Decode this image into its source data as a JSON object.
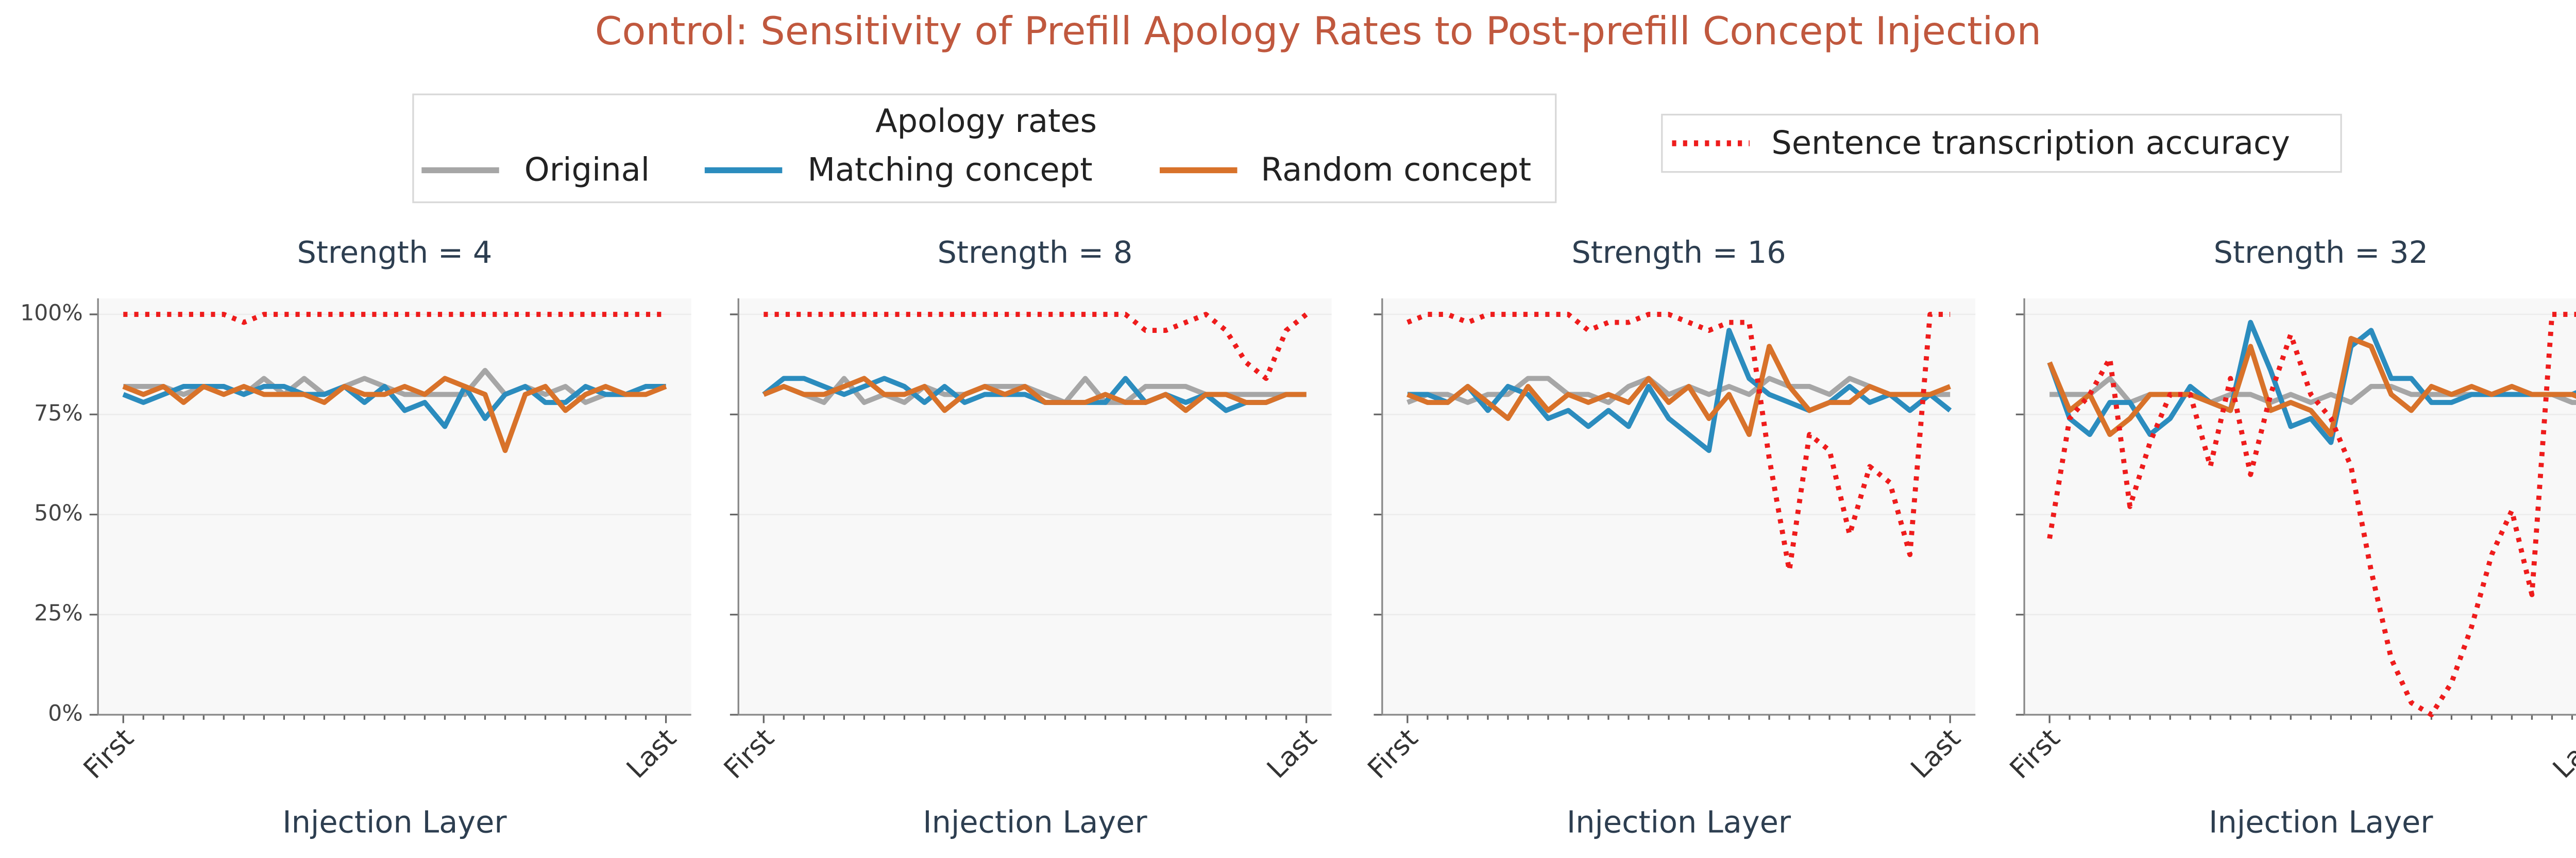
{
  "title": "Control: Sensitivity of Prefill Apology Rates to Post-prefill Concept Injection",
  "legend_title": "Apology rates",
  "chart_data": [
    {
      "type": "line",
      "title": "Strength = 4",
      "x_label": "Injection Layer",
      "categories": [
        "First",
        null,
        null,
        null,
        null,
        null,
        null,
        null,
        null,
        null,
        null,
        null,
        null,
        null,
        null,
        null,
        null,
        null,
        null,
        null,
        null,
        null,
        null,
        null,
        null,
        null,
        null,
        "Last"
      ],
      "ylim": [
        0,
        104
      ],
      "yticks": [
        {
          "value": 0,
          "label": "0%"
        },
        {
          "value": 25,
          "label": "25%"
        },
        {
          "value": 50,
          "label": "50%"
        },
        {
          "value": 75,
          "label": "75%"
        },
        {
          "value": 100,
          "label": "100%"
        }
      ],
      "grid": true,
      "series": [
        {
          "name": "Original",
          "color": "#a6a6a6",
          "dash": "solid",
          "values": [
            82,
            82,
            82,
            80,
            82,
            82,
            80,
            84,
            80,
            84,
            80,
            82,
            84,
            82,
            80,
            80,
            80,
            80,
            86,
            80,
            82,
            80,
            82,
            78,
            80,
            80,
            82,
            82
          ]
        },
        {
          "name": "Matching concept",
          "color": "#2b8cbe",
          "dash": "solid",
          "values": [
            80,
            78,
            80,
            82,
            82,
            82,
            80,
            82,
            82,
            80,
            80,
            82,
            78,
            82,
            76,
            78,
            72,
            82,
            74,
            80,
            82,
            78,
            78,
            82,
            80,
            80,
            82,
            82
          ]
        },
        {
          "name": "Random concept",
          "color": "#d8722a",
          "dash": "solid",
          "values": [
            82,
            80,
            82,
            78,
            82,
            80,
            82,
            80,
            80,
            80,
            78,
            82,
            80,
            80,
            82,
            80,
            84,
            82,
            80,
            66,
            80,
            82,
            76,
            80,
            82,
            80,
            80,
            82
          ]
        },
        {
          "name": "Sentence transcription accuracy",
          "color": "#ee1c1c",
          "dash": "dotted",
          "values": [
            100,
            100,
            100,
            100,
            100,
            100,
            98,
            100,
            100,
            100,
            100,
            100,
            100,
            100,
            100,
            100,
            100,
            100,
            100,
            100,
            100,
            100,
            100,
            100,
            100,
            100,
            100,
            100
          ]
        }
      ]
    },
    {
      "type": "line",
      "title": "Strength = 8",
      "x_label": "Injection Layer",
      "categories": [
        "First",
        null,
        null,
        null,
        null,
        null,
        null,
        null,
        null,
        null,
        null,
        null,
        null,
        null,
        null,
        null,
        null,
        null,
        null,
        null,
        null,
        null,
        null,
        null,
        null,
        null,
        null,
        "Last"
      ],
      "ylim": [
        0,
        104
      ],
      "yticks": [
        0,
        25,
        50,
        75,
        100
      ],
      "grid": true,
      "series": [
        {
          "name": "Original",
          "color": "#a6a6a6",
          "dash": "solid",
          "values": [
            80,
            82,
            80,
            78,
            84,
            78,
            80,
            78,
            82,
            80,
            80,
            82,
            82,
            82,
            80,
            78,
            84,
            78,
            78,
            82,
            82,
            82,
            80,
            80,
            80,
            80,
            80,
            80
          ]
        },
        {
          "name": "Matching concept",
          "color": "#2b8cbe",
          "dash": "solid",
          "values": [
            80,
            84,
            84,
            82,
            80,
            82,
            84,
            82,
            78,
            82,
            78,
            80,
            80,
            80,
            78,
            78,
            78,
            78,
            84,
            78,
            80,
            78,
            80,
            76,
            78,
            78,
            80,
            80
          ]
        },
        {
          "name": "Random concept",
          "color": "#d8722a",
          "dash": "solid",
          "values": [
            80,
            82,
            80,
            80,
            82,
            84,
            80,
            80,
            82,
            76,
            80,
            82,
            80,
            82,
            78,
            78,
            78,
            80,
            78,
            78,
            80,
            76,
            80,
            80,
            78,
            78,
            80,
            80
          ]
        },
        {
          "name": "Sentence transcription accuracy",
          "color": "#ee1c1c",
          "dash": "dotted",
          "values": [
            100,
            100,
            100,
            100,
            100,
            100,
            100,
            100,
            100,
            100,
            100,
            100,
            100,
            100,
            100,
            100,
            100,
            100,
            100,
            96,
            96,
            98,
            100,
            96,
            88,
            84,
            96,
            100
          ]
        }
      ]
    },
    {
      "type": "line",
      "title": "Strength = 16",
      "x_label": "Injection Layer",
      "categories": [
        "First",
        null,
        null,
        null,
        null,
        null,
        null,
        null,
        null,
        null,
        null,
        null,
        null,
        null,
        null,
        null,
        null,
        null,
        null,
        null,
        null,
        null,
        null,
        null,
        null,
        null,
        null,
        "Last"
      ],
      "ylim": [
        0,
        104
      ],
      "yticks": [
        0,
        25,
        50,
        75,
        100
      ],
      "grid": true,
      "series": [
        {
          "name": "Original",
          "color": "#a6a6a6",
          "dash": "solid",
          "values": [
            78,
            80,
            80,
            78,
            80,
            80,
            84,
            84,
            80,
            80,
            78,
            82,
            84,
            80,
            82,
            80,
            82,
            80,
            84,
            82,
            82,
            80,
            84,
            82,
            80,
            80,
            80,
            80
          ]
        },
        {
          "name": "Matching concept",
          "color": "#2b8cbe",
          "dash": "solid",
          "values": [
            80,
            80,
            78,
            82,
            76,
            82,
            80,
            74,
            76,
            72,
            76,
            72,
            82,
            74,
            70,
            66,
            96,
            84,
            80,
            78,
            76,
            78,
            82,
            78,
            80,
            76,
            80,
            76
          ]
        },
        {
          "name": "Random concept",
          "color": "#d8722a",
          "dash": "solid",
          "values": [
            80,
            78,
            78,
            82,
            78,
            74,
            82,
            76,
            80,
            78,
            80,
            78,
            84,
            78,
            82,
            74,
            80,
            70,
            92,
            82,
            76,
            78,
            78,
            82,
            80,
            80,
            80,
            82
          ]
        },
        {
          "name": "Sentence transcription accuracy",
          "color": "#ee1c1c",
          "dash": "dotted",
          "values": [
            98,
            100,
            100,
            98,
            100,
            100,
            100,
            100,
            100,
            96,
            98,
            98,
            100,
            100,
            98,
            96,
            98,
            98,
            64,
            36,
            70,
            66,
            45,
            62,
            58,
            40,
            100,
            100
          ]
        }
      ]
    },
    {
      "type": "line",
      "title": "Strength = 32",
      "x_label": "Injection Layer",
      "categories": [
        "First",
        null,
        null,
        null,
        null,
        null,
        null,
        null,
        null,
        null,
        null,
        null,
        null,
        null,
        null,
        null,
        null,
        null,
        null,
        null,
        null,
        null,
        null,
        null,
        null,
        null,
        null,
        "Last"
      ],
      "ylim": [
        0,
        104
      ],
      "yticks": [
        0,
        25,
        50,
        75,
        100
      ],
      "grid": true,
      "series": [
        {
          "name": "Original",
          "color": "#a6a6a6",
          "dash": "solid",
          "values": [
            80,
            80,
            80,
            84,
            78,
            80,
            80,
            80,
            78,
            80,
            80,
            78,
            80,
            78,
            80,
            78,
            82,
            82,
            80,
            80,
            80,
            80,
            80,
            82,
            80,
            80,
            78,
            78
          ]
        },
        {
          "name": "Matching concept",
          "color": "#2b8cbe",
          "dash": "solid",
          "values": [
            88,
            74,
            70,
            78,
            78,
            70,
            74,
            82,
            78,
            76,
            98,
            86,
            72,
            74,
            68,
            92,
            96,
            84,
            84,
            78,
            78,
            80,
            80,
            80,
            80,
            80,
            80,
            82
          ]
        },
        {
          "name": "Random concept",
          "color": "#d8722a",
          "dash": "solid",
          "values": [
            88,
            76,
            80,
            70,
            74,
            80,
            80,
            80,
            78,
            76,
            92,
            76,
            78,
            76,
            70,
            94,
            92,
            80,
            76,
            82,
            80,
            82,
            80,
            82,
            80,
            80,
            80,
            78
          ]
        },
        {
          "name": "Sentence transcription accuracy",
          "color": "#ee1c1c",
          "dash": "dotted",
          "values": [
            44,
            74,
            80,
            89,
            52,
            68,
            80,
            80,
            62,
            84,
            60,
            80,
            95,
            80,
            74,
            62,
            36,
            14,
            3,
            0,
            8,
            22,
            40,
            51,
            30,
            100,
            100,
            100
          ]
        }
      ]
    }
  ]
}
